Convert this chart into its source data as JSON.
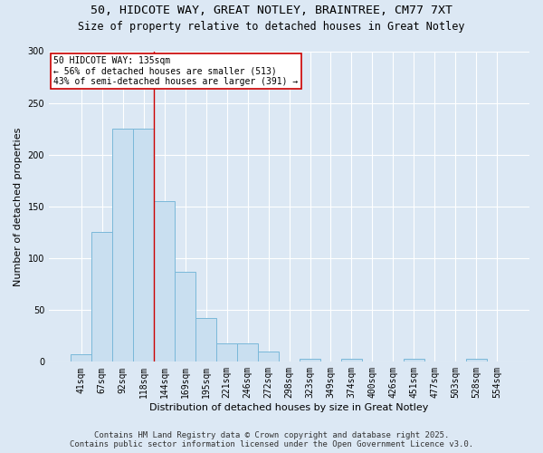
{
  "title1": "50, HIDCOTE WAY, GREAT NOTLEY, BRAINTREE, CM77 7XT",
  "title2": "Size of property relative to detached houses in Great Notley",
  "xlabel": "Distribution of detached houses by size in Great Notley",
  "ylabel": "Number of detached properties",
  "categories": [
    "41sqm",
    "67sqm",
    "92sqm",
    "118sqm",
    "144sqm",
    "169sqm",
    "195sqm",
    "221sqm",
    "246sqm",
    "272sqm",
    "298sqm",
    "323sqm",
    "349sqm",
    "374sqm",
    "400sqm",
    "426sqm",
    "451sqm",
    "477sqm",
    "503sqm",
    "528sqm",
    "554sqm"
  ],
  "values": [
    7,
    125,
    225,
    225,
    155,
    87,
    42,
    18,
    18,
    10,
    0,
    3,
    0,
    3,
    0,
    0,
    3,
    0,
    0,
    3,
    0
  ],
  "bar_color": "#c9dff0",
  "bar_edge_color": "#7ab8d9",
  "annotation_line1": "50 HIDCOTE WAY: 135sqm",
  "annotation_line2": "← 56% of detached houses are smaller (513)",
  "annotation_line3": "43% of semi-detached houses are larger (391) →",
  "annotation_box_facecolor": "#ffffff",
  "annotation_box_edgecolor": "#cc0000",
  "vline_color": "#cc0000",
  "background_color": "#dce8f4",
  "plot_bg_color": "#dce8f4",
  "grid_color": "#ffffff",
  "ylim": [
    0,
    300
  ],
  "yticks": [
    0,
    50,
    100,
    150,
    200,
    250,
    300
  ],
  "vline_x_index": 3.5,
  "footer1": "Contains HM Land Registry data © Crown copyright and database right 2025.",
  "footer2": "Contains public sector information licensed under the Open Government Licence v3.0.",
  "title1_fontsize": 9.5,
  "title2_fontsize": 8.5,
  "axis_label_fontsize": 8,
  "tick_fontsize": 7,
  "annotation_fontsize": 7,
  "footer_fontsize": 6.5
}
